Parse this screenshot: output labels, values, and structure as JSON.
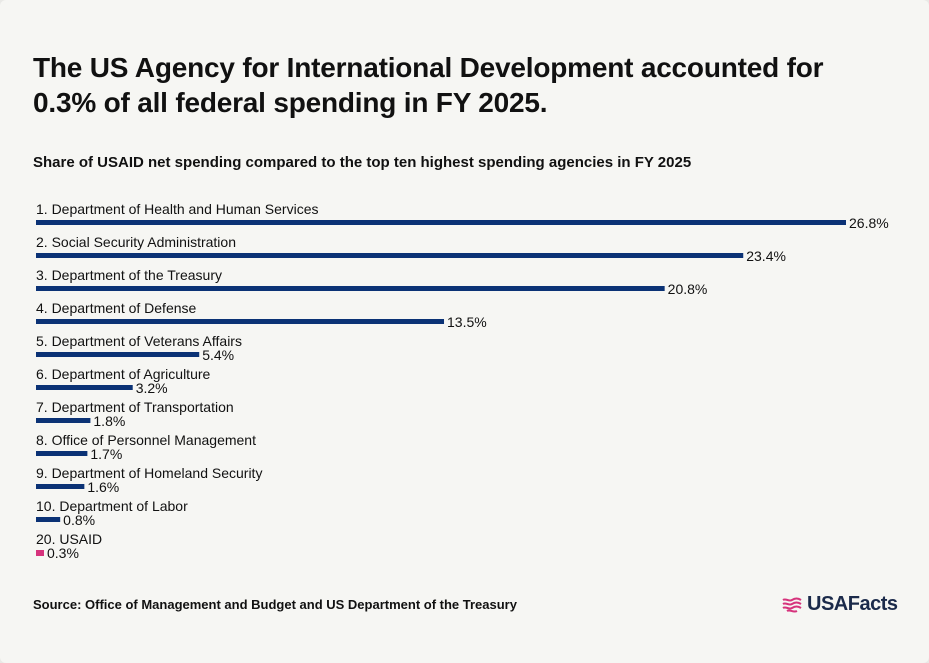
{
  "title": "The US Agency for International Development accounted for 0.3% of all federal spending in FY 2025.",
  "subtitle": "Share of USAID net spending compared to the top ten highest spending agencies in FY 2025",
  "source": "Source: Office of Management and Budget and US Department of the Treasury",
  "logo": {
    "text": "USAFacts",
    "icon": "usa-flag-map-icon"
  },
  "colors": {
    "bar": "#0b3275",
    "highlight": "#d6337c",
    "text": "#111111"
  },
  "chart_data": {
    "type": "bar",
    "orientation": "horizontal",
    "unit": "%",
    "categories": [
      "1. Department of Health and Human Services",
      "2. Social Security Administration",
      "3. Department of the Treasury",
      "4. Department of Defense",
      "5. Department of Veterans Affairs",
      "6. Department of Agriculture",
      "7. Department of Transportation",
      "8. Office of Personnel Management",
      "9. Department of Homeland Security",
      "10. Department of Labor",
      "20. USAID"
    ],
    "values": [
      26.8,
      23.4,
      20.8,
      13.5,
      5.4,
      3.2,
      1.8,
      1.7,
      1.6,
      0.8,
      0.3
    ],
    "value_labels": [
      "26.8%",
      "23.4%",
      "20.8%",
      "13.5%",
      "5.4%",
      "3.2%",
      "1.8%",
      "1.7%",
      "1.6%",
      "0.8%",
      "0.3%"
    ],
    "highlight": "20. USAID",
    "xlim": [
      0,
      26.8
    ],
    "grid": false,
    "legend": "none"
  }
}
